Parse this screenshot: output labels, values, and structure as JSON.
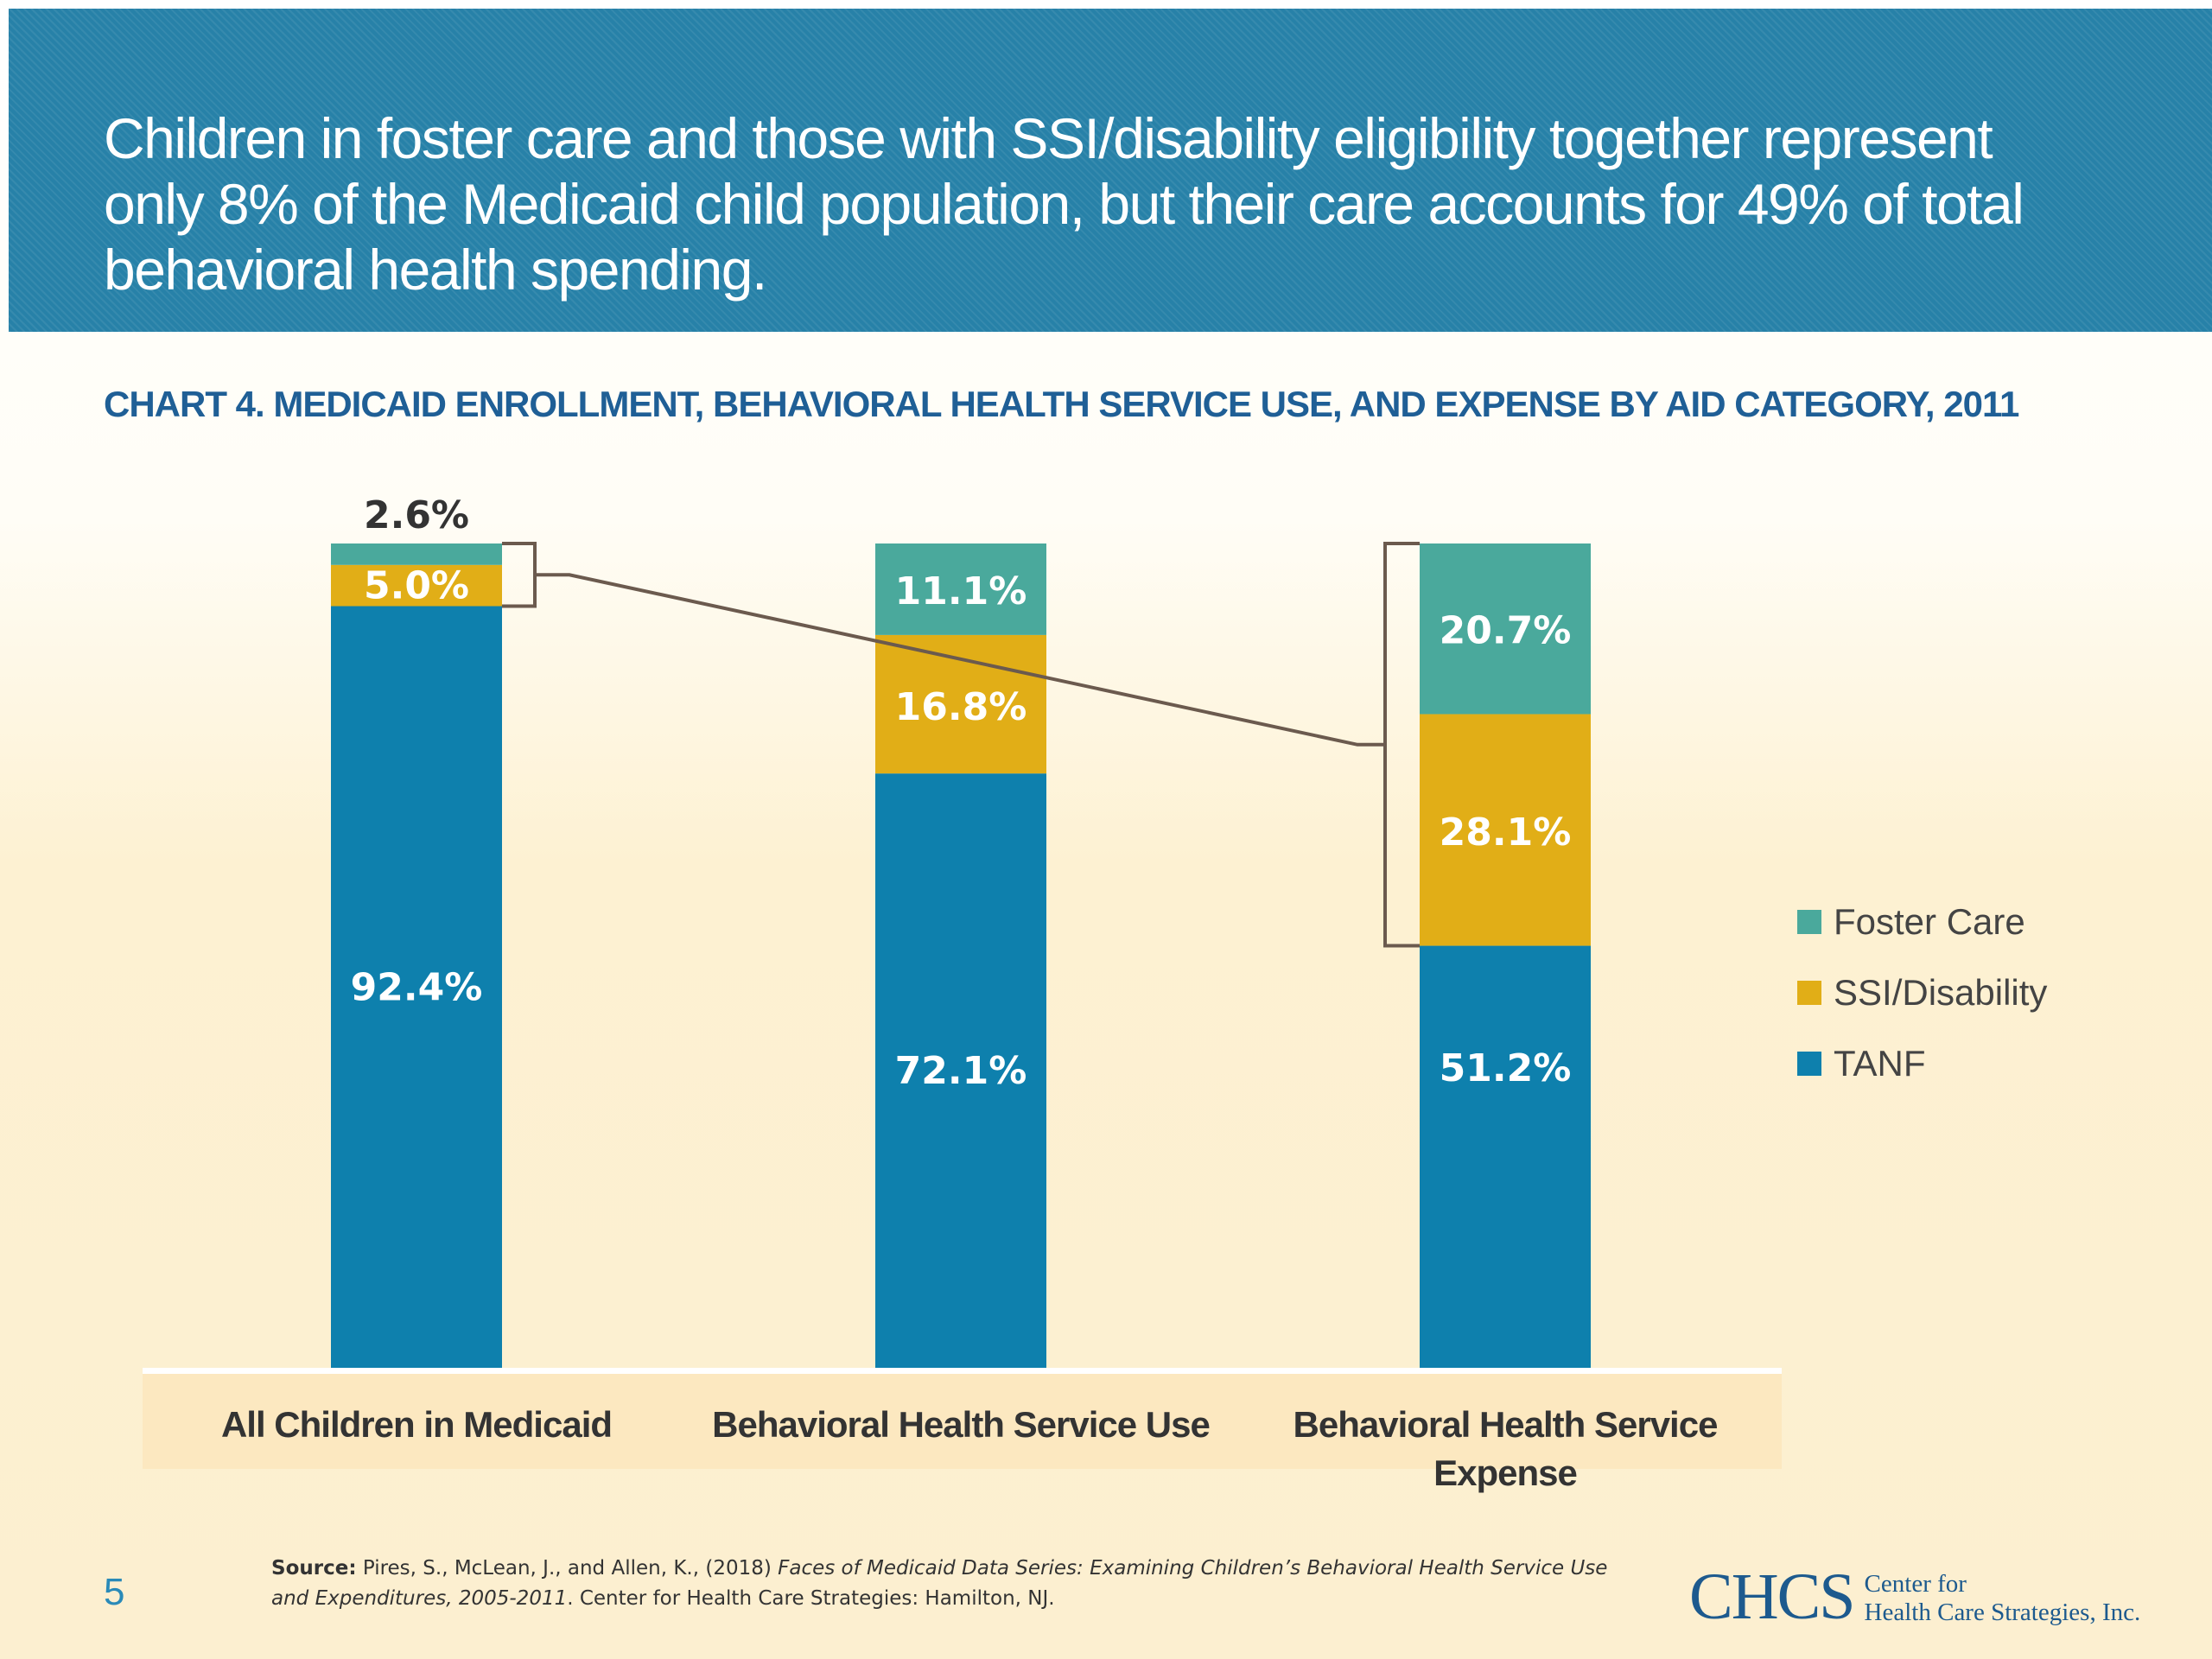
{
  "header": {
    "headline_line1": "Children in foster care and those with SSI/disability eligibility together represent",
    "headline_line2": "only 8% of the Medicaid child population, but their care accounts for 49% of total",
    "headline_line3": "behavioral health spending."
  },
  "chart_data": {
    "type": "bar",
    "stacked": true,
    "title": "CHART 4. MEDICAID ENROLLMENT, BEHAVIORAL HEALTH SERVICE USE, AND EXPENSE BY AID CATEGORY, 2011",
    "categories": [
      "All Children in Medicaid",
      "Behavioral Health Service Use",
      "Behavioral Health Service Expense"
    ],
    "category_lines": [
      [
        "All Children in Medicaid"
      ],
      [
        "Behavioral Health Service Use"
      ],
      [
        "Behavioral Health Service",
        "Expense"
      ]
    ],
    "series": [
      {
        "name": "TANF",
        "values": [
          92.4,
          72.1,
          51.2
        ],
        "labels": [
          "92.4%",
          "72.1%",
          "51.2%"
        ],
        "color": "#0e80ad"
      },
      {
        "name": "SSI/Disability",
        "values": [
          5.0,
          16.8,
          28.1
        ],
        "labels": [
          "5.0%",
          "16.8%",
          "28.1%"
        ],
        "color": "#e1ae17"
      },
      {
        "name": "Foster Care",
        "values": [
          2.6,
          11.1,
          20.7
        ],
        "labels": [
          "2.6%",
          "11.1%",
          "20.7%"
        ],
        "color": "#4aa99c"
      }
    ],
    "ylim": [
      0,
      100
    ],
    "legend_placement": "right",
    "grid": false
  },
  "legend": [
    {
      "label": "Foster Care",
      "color": "#4aa99c"
    },
    {
      "label": "SSI/Disability",
      "color": "#e1ae17"
    },
    {
      "label": "TANF",
      "color": "#0e80ad"
    }
  ],
  "footer": {
    "page_number": "5",
    "source_label": "Source:",
    "source_authors": " Pires, S., McLean, J., and Allen, K., (2018) ",
    "source_title": "Faces of Medicaid Data Series: Examining Children’s Behavioral Health Service Use and Expenditures, 2005-2011",
    "source_publisher": ". Center for Health Care Strategies: Hamilton, NJ.",
    "logo_mark": "CHCS",
    "logo_line1": "Center for",
    "logo_line2": "Health Care Strategies, Inc."
  }
}
